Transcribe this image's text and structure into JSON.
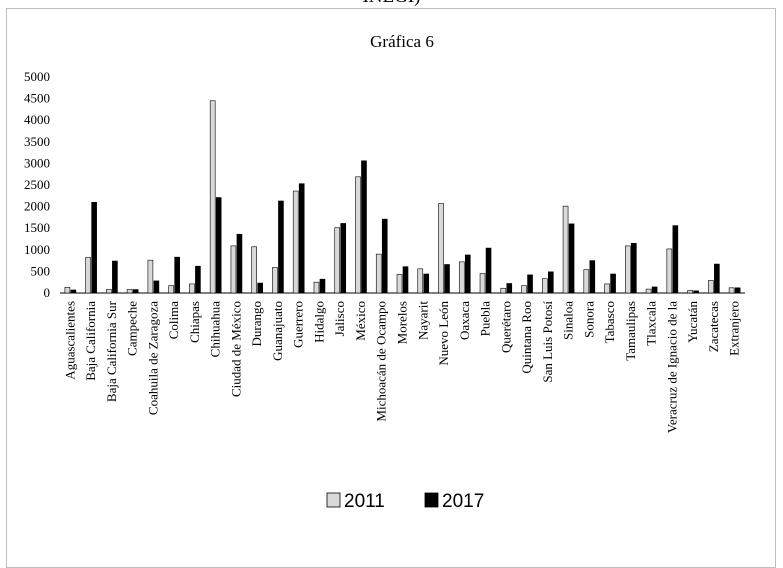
{
  "header": {
    "cut_title": "INEGI)"
  },
  "chart_data": {
    "type": "bar",
    "title": "Gráfica 6",
    "xlabel": "",
    "ylabel": "",
    "ylim": [
      0,
      5000
    ],
    "yticks": [
      "0",
      "500",
      "1000",
      "1500",
      "2000",
      "2500",
      "3000",
      "3500",
      "4000",
      "4500",
      "5000"
    ],
    "grid": false,
    "legend": "bottom",
    "categories": [
      "Aguascalientes",
      "Baja California",
      "Baja California Sur",
      "Campeche",
      "Coahuila de Zaragoza",
      "Colima",
      "Chiapas",
      "Chihuahua",
      "Ciudad de México",
      "Durango",
      "Guanajuato",
      "Guerrero",
      "Hidalgo",
      "Jalisco",
      "México",
      "Michoacán de Ocampo",
      "Morelos",
      "Nayarit",
      "Nuevo León",
      "Oaxaca",
      "Puebla",
      "Querétaro",
      "Quintana Roo",
      "San Luis Potosí",
      "Sinaloa",
      "Sonora",
      "Tabasco",
      "Tamaulipas",
      "Tlaxcala",
      "Veracruz de Ignacio de la",
      "Yucatán",
      "Zacatecas",
      "Extranjero"
    ],
    "series": [
      {
        "name": "2011",
        "color": "#d9d9d9",
        "values": [
          130,
          820,
          80,
          80,
          760,
          170,
          210,
          4450,
          1090,
          1070,
          590,
          2360,
          250,
          1510,
          2690,
          900,
          430,
          560,
          2070,
          720,
          450,
          110,
          170,
          330,
          2010,
          540,
          210,
          1090,
          90,
          1020,
          60,
          290,
          120
        ]
      },
      {
        "name": "2017",
        "color": "#000000",
        "values": [
          70,
          2100,
          740,
          80,
          280,
          830,
          620,
          2210,
          1360,
          230,
          2130,
          2530,
          320,
          1610,
          3060,
          1710,
          610,
          440,
          660,
          880,
          1040,
          220,
          420,
          490,
          1600,
          750,
          440,
          1150,
          140,
          1560,
          50,
          670,
          120
        ]
      }
    ]
  }
}
